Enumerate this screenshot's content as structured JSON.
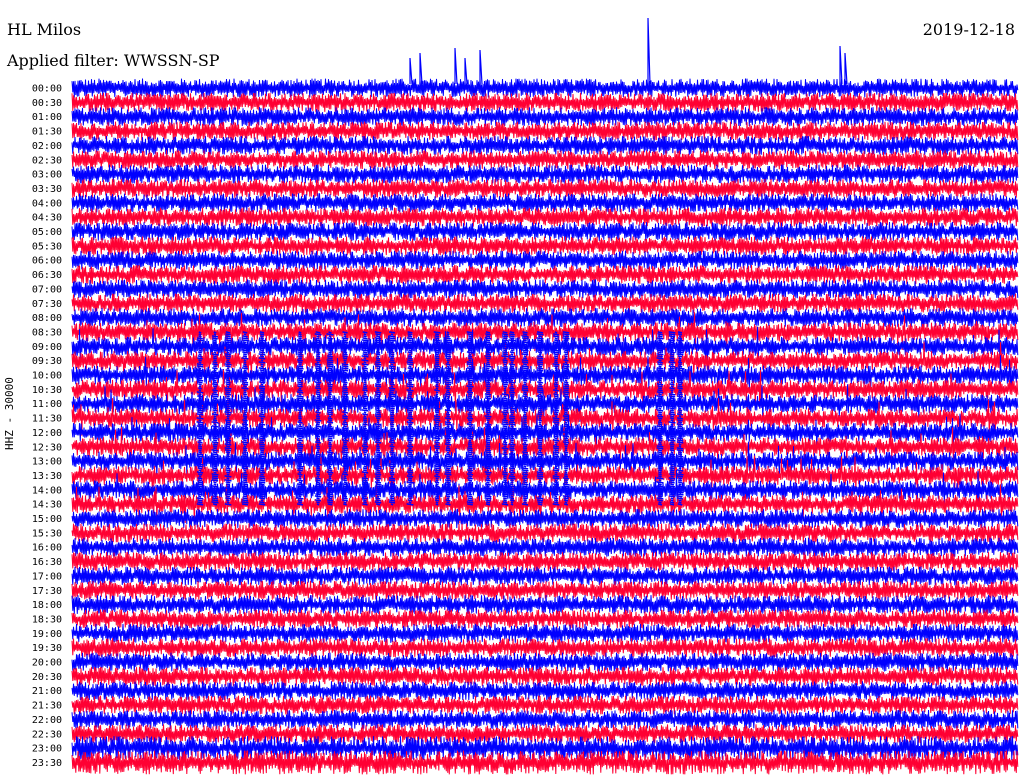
{
  "header": {
    "station": "HL Milos",
    "filter": "Applied filter: WWSSN-SP",
    "date": "2019-12-18"
  },
  "chart_data": {
    "type": "line",
    "ylabel": "HHZ - 30000",
    "rows": [
      "00:00",
      "00:30",
      "01:00",
      "01:30",
      "02:00",
      "02:30",
      "03:00",
      "03:30",
      "04:00",
      "04:30",
      "05:00",
      "05:30",
      "06:00",
      "06:30",
      "07:00",
      "07:30",
      "08:00",
      "08:30",
      "09:00",
      "09:30",
      "10:00",
      "10:30",
      "11:00",
      "11:30",
      "12:00",
      "12:30",
      "13:00",
      "13:30",
      "14:00",
      "14:30",
      "15:00",
      "15:30",
      "16:00",
      "16:30",
      "17:00",
      "17:30",
      "18:00",
      "18:30",
      "19:00",
      "19:30",
      "20:00",
      "20:30",
      "21:00",
      "21:30",
      "22:00",
      "22:30",
      "23:00",
      "23:30"
    ],
    "colors": [
      "#0000ff",
      "#ff0033"
    ]
  }
}
